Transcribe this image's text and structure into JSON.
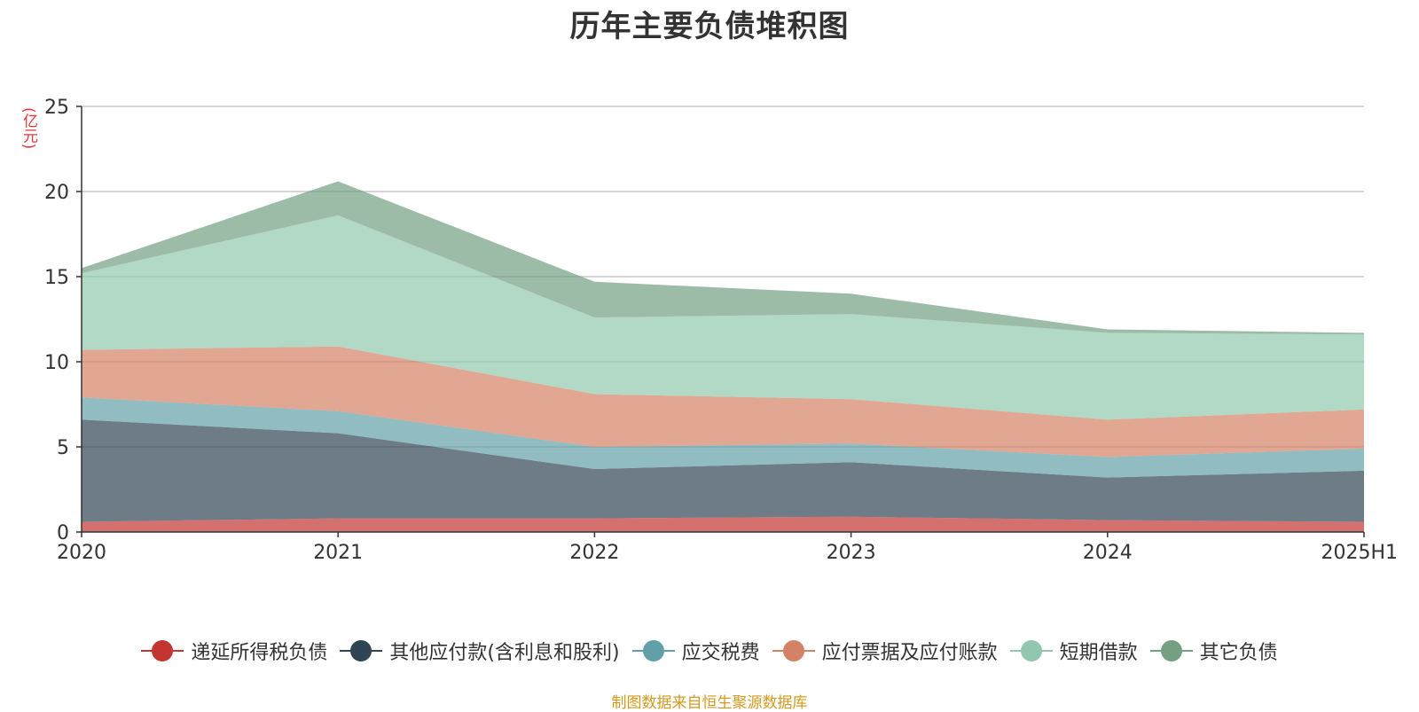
{
  "chart_data": {
    "type": "area",
    "stacked": true,
    "title": "历年主要负债堆积图",
    "unit_label": "(亿元)",
    "categories": [
      "2020",
      "2021",
      "2022",
      "2023",
      "2024",
      "2025H1"
    ],
    "ylim": [
      0,
      25
    ],
    "yticks": [
      "0",
      "5",
      "10",
      "15",
      "20",
      "25"
    ],
    "grid": true,
    "legend_position": "bottom",
    "series": [
      {
        "name": "递延所得税负债",
        "color": "#c23531",
        "values": [
          0.6,
          0.8,
          0.8,
          0.9,
          0.7,
          0.6
        ]
      },
      {
        "name": "其他应付款(含利息和股利)",
        "color": "#2f4554",
        "values": [
          6.0,
          5.0,
          2.9,
          3.2,
          2.5,
          3.0
        ]
      },
      {
        "name": "应交税费",
        "color": "#61a0a8",
        "values": [
          1.3,
          1.3,
          1.3,
          1.1,
          1.2,
          1.3
        ]
      },
      {
        "name": "应付票据及应付账款",
        "color": "#d48265",
        "values": [
          2.8,
          3.8,
          3.1,
          2.6,
          2.2,
          2.3
        ]
      },
      {
        "name": "短期借款",
        "color": "#91c7ae",
        "values": [
          4.5,
          7.7,
          4.5,
          5.0,
          5.1,
          4.4
        ]
      },
      {
        "name": "其它负债",
        "color": "#749f83",
        "values": [
          0.3,
          2.0,
          2.1,
          1.2,
          0.2,
          0.1
        ]
      }
    ]
  },
  "source_note": "制图数据来自恒生聚源数据库"
}
